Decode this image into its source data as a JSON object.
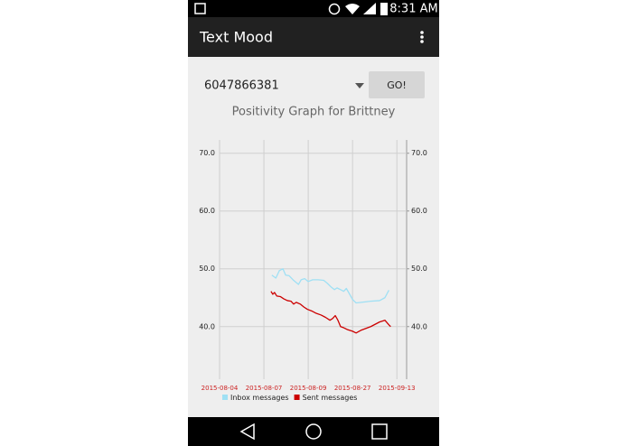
{
  "status_bar": {
    "time": "8:31 AM"
  },
  "app_bar": {
    "title": "Text Mood"
  },
  "form": {
    "phone_number": "6047866381",
    "button": "GO!"
  },
  "chart_data": {
    "type": "line",
    "title": "Positivity Graph for Brittney",
    "xlim": [
      0,
      4.22
    ],
    "xticks": [
      {
        "value": 0,
        "label": "2015-08-04"
      },
      {
        "value": 1,
        "label": "2015-08-07"
      },
      {
        "value": 2,
        "label": "2015-08-09"
      },
      {
        "value": 3,
        "label": "2015-08-27"
      },
      {
        "value": 4,
        "label": "2015-09-13"
      }
    ],
    "ylim": [
      30.9,
      72.3
    ],
    "yticks": [
      {
        "value": 40,
        "label": "40.0"
      },
      {
        "value": 50,
        "label": "50.0"
      },
      {
        "value": 60,
        "label": "60.0"
      },
      {
        "value": 70,
        "label": "70.0"
      }
    ],
    "y2lim": [
      30.9,
      72.3
    ],
    "y2ticks": [
      {
        "value": 40,
        "label": "40.0"
      },
      {
        "value": 50,
        "label": "50.0"
      },
      {
        "value": 60,
        "label": "60.0"
      },
      {
        "value": 70,
        "label": "70.0"
      }
    ],
    "grid": true,
    "series": [
      {
        "name": "Inbox messages",
        "color": "#9fe0f4",
        "x": [
          1.18,
          1.27,
          1.35,
          1.43,
          1.49,
          1.57,
          1.67,
          1.78,
          1.84,
          1.92,
          2.0,
          2.1,
          2.22,
          2.35,
          2.43,
          2.51,
          2.59,
          2.65,
          2.73,
          2.8,
          2.86,
          2.92,
          3.0,
          3.08,
          3.2,
          3.41,
          3.61,
          3.73,
          3.82
        ],
        "values": [
          48.9,
          48.4,
          49.7,
          50.0,
          48.9,
          48.8,
          48.0,
          47.3,
          48.1,
          48.3,
          47.8,
          48.1,
          48.1,
          48.0,
          47.5,
          46.9,
          46.4,
          46.7,
          46.4,
          46.1,
          46.6,
          45.8,
          44.7,
          44.1,
          44.2,
          44.4,
          44.5,
          45.0,
          46.3
        ]
      },
      {
        "name": "Sent messages",
        "color": "#cc0000",
        "x": [
          1.16,
          1.2,
          1.24,
          1.29,
          1.37,
          1.45,
          1.53,
          1.61,
          1.67,
          1.73,
          1.82,
          1.9,
          1.98,
          2.08,
          2.18,
          2.29,
          2.39,
          2.49,
          2.55,
          2.61,
          2.67,
          2.73,
          2.8,
          2.88,
          3.0,
          3.08,
          3.2,
          3.41,
          3.61,
          3.73,
          3.82,
          3.86
        ],
        "values": [
          46.1,
          45.6,
          45.9,
          45.3,
          45.2,
          44.8,
          44.5,
          44.4,
          43.9,
          44.2,
          43.9,
          43.4,
          43.0,
          42.7,
          42.3,
          42.0,
          41.6,
          41.1,
          41.4,
          41.9,
          41.1,
          40.0,
          39.8,
          39.5,
          39.2,
          38.9,
          39.4,
          40.0,
          40.8,
          41.1,
          40.3,
          40.0
        ]
      }
    ]
  }
}
